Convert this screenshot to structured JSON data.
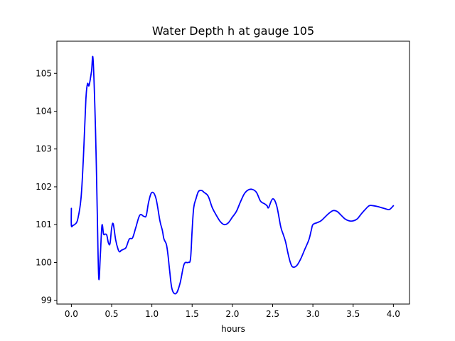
{
  "chart_data": {
    "type": "line",
    "title": "Water Depth h at gauge 105",
    "xlabel": "hours",
    "ylabel": "",
    "xlim": [
      -0.18,
      4.2
    ],
    "ylim": [
      98.9,
      105.85
    ],
    "xticks": [
      0.0,
      0.5,
      1.0,
      1.5,
      2.0,
      2.5,
      3.0,
      3.5,
      4.0
    ],
    "xtick_labels": [
      "0.0",
      "0.5",
      "1.0",
      "1.5",
      "2.0",
      "2.5",
      "3.0",
      "3.5",
      "4.0"
    ],
    "yticks": [
      99,
      100,
      101,
      102,
      103,
      104,
      105
    ],
    "ytick_labels": [
      "99",
      "100",
      "101",
      "102",
      "103",
      "104",
      "105"
    ],
    "grid": false,
    "color": "#0000ff",
    "series": [
      {
        "x": [
          0.0,
          0.0,
          0.02,
          0.05,
          0.08,
          0.12,
          0.15,
          0.18,
          0.2,
          0.22,
          0.25,
          0.27,
          0.3,
          0.32,
          0.34,
          0.36,
          0.38,
          0.4,
          0.42,
          0.44,
          0.46,
          0.48,
          0.5,
          0.52,
          0.55,
          0.58,
          0.6,
          0.62,
          0.65,
          0.68,
          0.72,
          0.76,
          0.8,
          0.85,
          0.9,
          0.93,
          0.96,
          1.0,
          1.05,
          1.1,
          1.13,
          1.15,
          1.18,
          1.2,
          1.22,
          1.25,
          1.3,
          1.35,
          1.4,
          1.45,
          1.48,
          1.5,
          1.52,
          1.55,
          1.58,
          1.62,
          1.65,
          1.7,
          1.75,
          1.8,
          1.85,
          1.9,
          1.95,
          2.0,
          2.05,
          2.1,
          2.15,
          2.2,
          2.25,
          2.3,
          2.35,
          2.4,
          2.43,
          2.45,
          2.5,
          2.55,
          2.6,
          2.63,
          2.66,
          2.69,
          2.72,
          2.75,
          2.8,
          2.85,
          2.9,
          2.95,
          2.98,
          3.0,
          3.05,
          3.1,
          3.15,
          3.2,
          3.25,
          3.3,
          3.35,
          3.4,
          3.45,
          3.5,
          3.55,
          3.6,
          3.65,
          3.7,
          3.75,
          3.8,
          3.85,
          3.9,
          3.95,
          4.0
        ],
        "y": [
          101.43,
          100.98,
          100.98,
          101.02,
          101.15,
          101.7,
          102.8,
          104.3,
          104.72,
          104.68,
          105.05,
          105.36,
          103.5,
          101.5,
          99.6,
          100.2,
          100.98,
          100.75,
          100.75,
          100.72,
          100.52,
          100.5,
          100.9,
          101.02,
          100.6,
          100.35,
          100.28,
          100.32,
          100.35,
          100.4,
          100.62,
          100.65,
          100.92,
          101.25,
          101.22,
          101.24,
          101.6,
          101.85,
          101.7,
          101.1,
          100.85,
          100.62,
          100.48,
          100.2,
          99.8,
          99.3,
          99.18,
          99.45,
          99.95,
          100.0,
          100.1,
          100.85,
          101.45,
          101.7,
          101.88,
          101.9,
          101.85,
          101.75,
          101.45,
          101.25,
          101.08,
          101.0,
          101.05,
          101.2,
          101.35,
          101.6,
          101.82,
          101.92,
          101.93,
          101.85,
          101.62,
          101.55,
          101.5,
          101.45,
          101.68,
          101.5,
          100.95,
          100.75,
          100.55,
          100.25,
          100.0,
          99.88,
          99.92,
          100.1,
          100.35,
          100.6,
          100.85,
          101.0,
          101.05,
          101.1,
          101.2,
          101.3,
          101.37,
          101.35,
          101.25,
          101.15,
          101.1,
          101.1,
          101.15,
          101.28,
          101.4,
          101.5,
          101.5,
          101.48,
          101.45,
          101.42,
          101.4,
          101.5
        ]
      }
    ]
  }
}
